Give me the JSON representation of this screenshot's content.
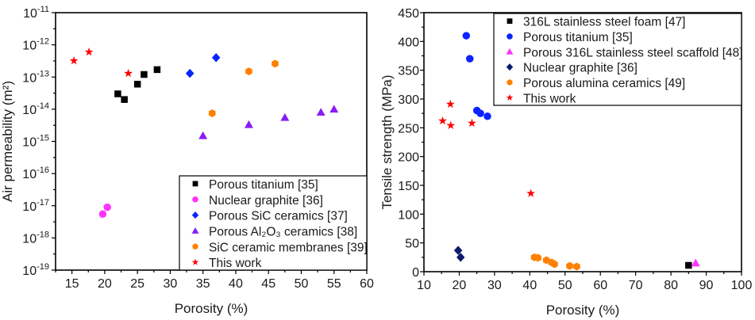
{
  "chart_data": [
    {
      "type": "scatter",
      "xlabel": "Porosity (%)",
      "ylabel": "Air permeability (m²)",
      "xlim": [
        12.5,
        60
      ],
      "xticks": [
        15,
        20,
        25,
        30,
        35,
        40,
        45,
        50,
        55,
        60
      ],
      "ylim": [
        1e-19,
        1e-11
      ],
      "yscale": "log",
      "yticks": [
        -11,
        -12,
        -13,
        -14,
        -15,
        -16,
        -17,
        -18,
        -19
      ],
      "grid": false,
      "legend_position": "bottom-right",
      "series": [
        {
          "name": "Porous titanium [35]",
          "marker": "square",
          "color": "#000000",
          "x": [
            22,
            23,
            25,
            26,
            28
          ],
          "y": [
            3e-14,
            2e-14,
            6e-14,
            1.2e-13,
            1.7e-13
          ]
        },
        {
          "name": "Nuclear graphite [36]",
          "marker": "circle",
          "color": "#ff33ff",
          "x": [
            19.7,
            20.4
          ],
          "y": [
            5.5e-18,
            9e-18
          ]
        },
        {
          "name": "Porous SiC ceramics [37]",
          "marker": "diamond",
          "color": "#0a23ff",
          "x": [
            33,
            37
          ],
          "y": [
            1.3e-13,
            4e-13
          ]
        },
        {
          "name": "Porous Al₂O₃ ceramics [38]",
          "marker": "triangle",
          "color": "#8a1cf5",
          "x": [
            35,
            42,
            47.5,
            53,
            55
          ],
          "y": [
            1.5e-15,
            3.3e-15,
            5.5e-15,
            8e-15,
            1e-14
          ]
        },
        {
          "name": "SiC ceramic membranes [39]",
          "marker": "hexagon",
          "color": "#ff8000",
          "x": [
            36.4,
            42,
            46
          ],
          "y": [
            7.5e-15,
            1.5e-13,
            2.6e-13
          ]
        },
        {
          "name": "This work",
          "marker": "star",
          "color": "#ff0000",
          "x": [
            15.3,
            17.6,
            23.6
          ],
          "y": [
            3.2e-13,
            6e-13,
            1.3e-13
          ]
        }
      ]
    },
    {
      "type": "scatter",
      "xlabel": "Porosity (%)",
      "ylabel": "Tensile strength (MPa)",
      "xlim": [
        10,
        100
      ],
      "xticks": [
        10,
        20,
        30,
        40,
        50,
        60,
        70,
        80,
        90,
        100
      ],
      "ylim": [
        0,
        450
      ],
      "yticks": [
        0,
        50,
        100,
        150,
        200,
        250,
        300,
        350,
        400,
        450
      ],
      "grid": false,
      "legend_position": "top-right",
      "series": [
        {
          "name": "316L stainless steel foam [47]",
          "marker": "square",
          "color": "#000000",
          "x": [
            85
          ],
          "y": [
            11
          ]
        },
        {
          "name": "Porous titanium [35]",
          "marker": "circle",
          "color": "#0a23ff",
          "x": [
            22,
            23,
            25,
            26,
            28
          ],
          "y": [
            410,
            370,
            280,
            275,
            270
          ]
        },
        {
          "name": "Porous 316L stainless steel scaffold [48]",
          "marker": "triangle",
          "color": "#ff33ff",
          "x": [
            87
          ],
          "y": [
            15
          ]
        },
        {
          "name": "Nuclear graphite [36]",
          "marker": "diamond",
          "color": "#0d1a6e",
          "x": [
            19.7,
            20.4
          ],
          "y": [
            37,
            25
          ]
        },
        {
          "name": "Porous alumina ceramics [49]",
          "marker": "hexagon",
          "color": "#ff8000",
          "x": [
            41.3,
            42.3,
            44.7,
            46.2,
            47,
            51.3,
            53.3
          ],
          "y": [
            25,
            24,
            20,
            16,
            13,
            10,
            9
          ]
        },
        {
          "name": "This work",
          "marker": "star",
          "color": "#ff0000",
          "x": [
            15.3,
            17.5,
            17.6,
            23.6,
            40.3
          ],
          "y": [
            262,
            291,
            254,
            258,
            136
          ]
        }
      ]
    }
  ]
}
